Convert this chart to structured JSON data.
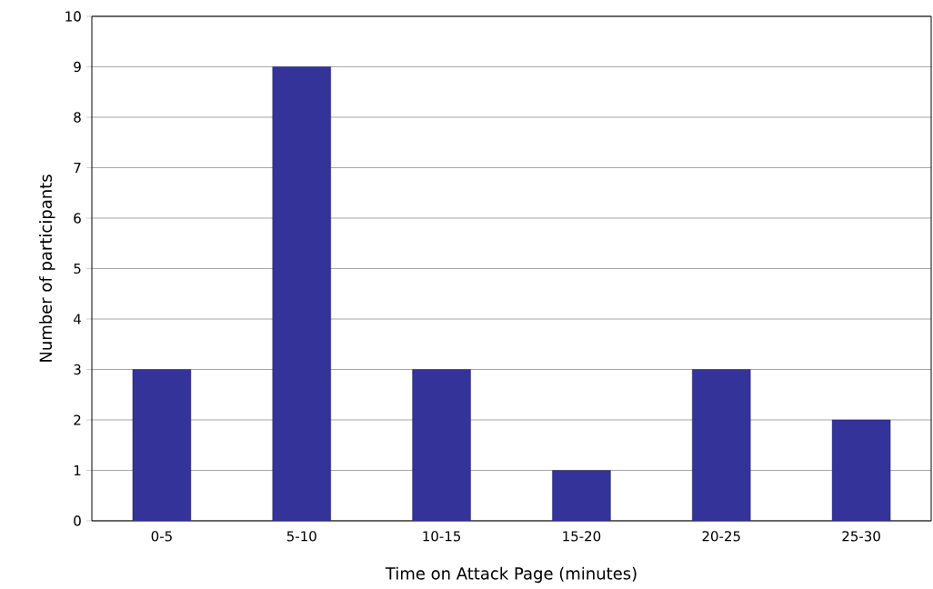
{
  "chart_data": {
    "type": "bar",
    "xlabel": "Time on Attack Page (minutes)",
    "ylabel": "Number of participants",
    "categories": [
      "0-5",
      "5-10",
      "10-15",
      "15-20",
      "20-25",
      "25-30"
    ],
    "values": [
      3,
      9,
      3,
      1,
      3,
      2
    ],
    "color": "#333399",
    "ylim": [
      0,
      10
    ],
    "yticks": [
      0,
      1,
      2,
      3,
      4,
      5,
      6,
      7,
      8,
      9,
      10
    ],
    "grid": "y"
  }
}
